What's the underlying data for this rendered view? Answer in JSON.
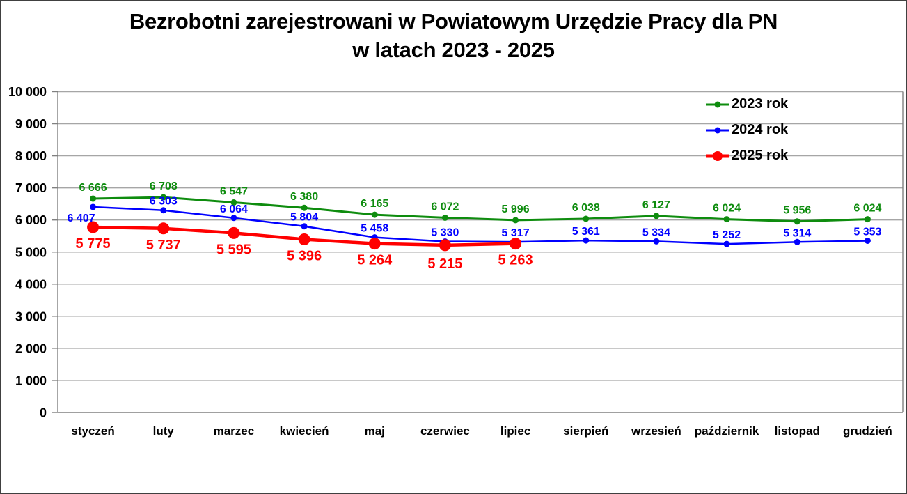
{
  "chart_data": {
    "type": "line",
    "title": "Bezrobotni zarejestrowani w Powiatowym Urzędzie Pracy dla PN w latach 2023 - 2025",
    "title_lines": [
      "Bezrobotni zarejestrowani w Powiatowym Urzędzie Pracy dla PN",
      "w latach 2023 - 2025"
    ],
    "categories": [
      "styczeń",
      "luty",
      "marzec",
      "kwiecień",
      "maj",
      "czerwiec",
      "lipiec",
      "sierpień",
      "wrzesień",
      "październik",
      "listopad",
      "grudzień"
    ],
    "series": [
      {
        "name": "2023 rok",
        "color": "#0E8C0E",
        "values": [
          6666,
          6708,
          6547,
          6380,
          6165,
          6072,
          5996,
          6038,
          6127,
          6024,
          5956,
          6024
        ]
      },
      {
        "name": "2024 rok",
        "color": "#0000FF",
        "values": [
          6407,
          6303,
          6064,
          5804,
          5458,
          5330,
          5317,
          5361,
          5334,
          5252,
          5314,
          5353
        ]
      },
      {
        "name": "2025 rok",
        "color": "#FF0000",
        "values": [
          5775,
          5737,
          5595,
          5396,
          5264,
          5215,
          5263
        ]
      }
    ],
    "ylim": [
      0,
      10000
    ],
    "ytick_step": 1000,
    "ytick_labels": [
      "0",
      "1 000",
      "2 000",
      "3 000",
      "4 000",
      "5 000",
      "6 000",
      "7 000",
      "8 000",
      "9 000",
      "10 000"
    ],
    "xlabel": "",
    "ylabel": "",
    "grid": true,
    "data_labels": true,
    "legend_position": "top-right",
    "colors": {
      "grid": "#A6A6A6",
      "axis": "#808080",
      "text": "#000000",
      "background": "#FFFFFF",
      "frame_border": "#404040"
    }
  }
}
